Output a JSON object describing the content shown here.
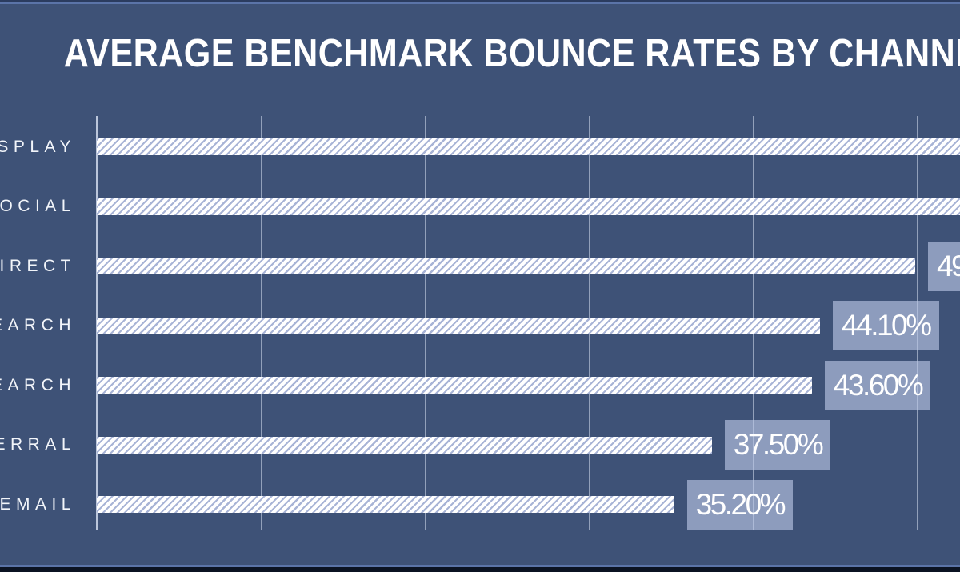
{
  "colors": {
    "background": "#3E5277",
    "title_text": "#FFFFFF",
    "label_text": "#F2F5FA",
    "value_text": "#FFFFFF",
    "bar_fill": "#FFFFFF",
    "bar_hatch": "#A8B4D6",
    "gridline": "rgba(215,224,242,0.55)",
    "axis": "rgba(219,227,244,0.8)",
    "label_box_bg": "rgba(190,202,233,0.62)",
    "edge_light": "#5B74A8",
    "edge_dark_top": "#2B3C5F",
    "edge_dark_bottom": "#0B1322"
  },
  "chart_data": {
    "type": "bar",
    "orientation": "horizontal",
    "title": "AVERAGE BENCHMARK BOUNCE RATES BY CHANNEL",
    "categories_visible": [
      "SPLAY",
      "OCIAL",
      "DIRECT",
      "EARCH",
      "EARCH",
      "ERRAL",
      "EMAIL"
    ],
    "series": [
      {
        "name": "Average benchmark bounce rate",
        "values_percent": [
          56.5,
          54.0,
          49.9,
          44.1,
          43.6,
          37.5,
          35.2
        ]
      }
    ],
    "value_labels_visible": [
      "",
      "",
      "49",
      "44.10%",
      "43.60%",
      "37.50%",
      "35.20%"
    ],
    "bars_clipped_at_right_edge": [
      true,
      true,
      false,
      false,
      false,
      false,
      false
    ],
    "x_axis": {
      "gridlines_percent": [
        0,
        10,
        20,
        30,
        40,
        50
      ],
      "tick_labels_visible": false,
      "xlim_visible_percent": [
        0,
        52.6
      ]
    },
    "grid": true,
    "legend": false
  }
}
